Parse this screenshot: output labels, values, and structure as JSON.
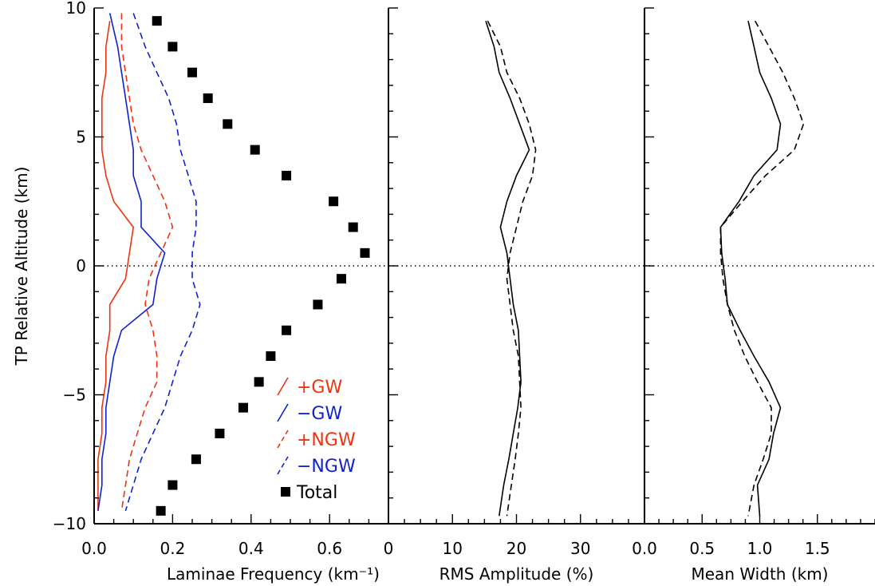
{
  "chart_data": {
    "type": "line",
    "y_axis": {
      "label": "TP Relative Altitude (km)",
      "range": [
        -10,
        10
      ],
      "ticks": [
        "10",
        "5",
        "0",
        "−5",
        "−10"
      ],
      "tick_values": [
        10,
        5,
        0,
        -5,
        -10
      ]
    },
    "reference_line": {
      "y": 0,
      "style": "dotted"
    },
    "panels": [
      {
        "id": "frequency",
        "xlabel": "Laminae Frequency (km⁻¹)",
        "xlim": [
          0,
          0.75
        ],
        "xticks": [
          "0.0",
          "0.2",
          "0.4",
          "0.6"
        ],
        "xtick_values": [
          0.0,
          0.2,
          0.4,
          0.6
        ],
        "series": [
          {
            "name": "+GW",
            "color": "#ee3311",
            "dash": "solid",
            "points": [
              [
                0.04,
                9.5
              ],
              [
                0.03,
                8.5
              ],
              [
                0.03,
                7.5
              ],
              [
                0.02,
                6.5
              ],
              [
                0.02,
                5.5
              ],
              [
                0.02,
                4.5
              ],
              [
                0.03,
                3.5
              ],
              [
                0.05,
                2.5
              ],
              [
                0.1,
                1.5
              ],
              [
                0.09,
                0.5
              ],
              [
                0.08,
                -0.5
              ],
              [
                0.04,
                -1.5
              ],
              [
                0.04,
                -2.5
              ],
              [
                0.03,
                -3.5
              ],
              [
                0.03,
                -4.5
              ],
              [
                0.02,
                -5.5
              ],
              [
                0.02,
                -6.5
              ],
              [
                0.01,
                -7.5
              ],
              [
                0.01,
                -8.5
              ],
              [
                0.01,
                -9.5
              ]
            ]
          },
          {
            "name": "−GW",
            "color": "#1122cc",
            "dash": "solid",
            "points": [
              [
                0.04,
                9.8
              ],
              [
                0.06,
                8.5
              ],
              [
                0.07,
                7.5
              ],
              [
                0.08,
                6.5
              ],
              [
                0.09,
                5.5
              ],
              [
                0.1,
                4.5
              ],
              [
                0.1,
                3.5
              ],
              [
                0.12,
                2.5
              ],
              [
                0.12,
                1.5
              ],
              [
                0.18,
                0.5
              ],
              [
                0.16,
                -0.5
              ],
              [
                0.15,
                -1.5
              ],
              [
                0.07,
                -2.5
              ],
              [
                0.05,
                -3.5
              ],
              [
                0.04,
                -4.5
              ],
              [
                0.03,
                -5.5
              ],
              [
                0.03,
                -6.5
              ],
              [
                0.02,
                -7.5
              ],
              [
                0.02,
                -8.5
              ],
              [
                0.01,
                -9.5
              ]
            ]
          },
          {
            "name": "+NGW",
            "color": "#ee3311",
            "dash": "dashed",
            "points": [
              [
                0.07,
                9.8
              ],
              [
                0.07,
                8.5
              ],
              [
                0.08,
                7.5
              ],
              [
                0.09,
                6.5
              ],
              [
                0.1,
                5.5
              ],
              [
                0.12,
                4.5
              ],
              [
                0.15,
                3.5
              ],
              [
                0.18,
                2.5
              ],
              [
                0.2,
                1.5
              ],
              [
                0.17,
                0.5
              ],
              [
                0.14,
                -0.5
              ],
              [
                0.13,
                -1.5
              ],
              [
                0.15,
                -2.5
              ],
              [
                0.16,
                -3.5
              ],
              [
                0.16,
                -4.5
              ],
              [
                0.13,
                -5.5
              ],
              [
                0.11,
                -6.5
              ],
              [
                0.09,
                -7.5
              ],
              [
                0.08,
                -8.5
              ],
              [
                0.07,
                -9.5
              ]
            ]
          },
          {
            "name": "−NGW",
            "color": "#1122cc",
            "dash": "dashed",
            "points": [
              [
                0.1,
                9.8
              ],
              [
                0.13,
                8.5
              ],
              [
                0.16,
                7.5
              ],
              [
                0.19,
                6.5
              ],
              [
                0.21,
                5.5
              ],
              [
                0.22,
                4.5
              ],
              [
                0.24,
                3.5
              ],
              [
                0.26,
                2.5
              ],
              [
                0.26,
                1.5
              ],
              [
                0.25,
                0.5
              ],
              [
                0.25,
                -0.5
              ],
              [
                0.27,
                -1.5
              ],
              [
                0.25,
                -2.5
              ],
              [
                0.22,
                -3.5
              ],
              [
                0.2,
                -4.5
              ],
              [
                0.18,
                -5.5
              ],
              [
                0.15,
                -6.5
              ],
              [
                0.12,
                -7.5
              ],
              [
                0.1,
                -8.5
              ],
              [
                0.08,
                -9.5
              ]
            ]
          },
          {
            "name": "Total",
            "color": "#000000",
            "marker": "square",
            "points": [
              [
                0.16,
                9.5
              ],
              [
                0.2,
                8.5
              ],
              [
                0.25,
                7.5
              ],
              [
                0.29,
                6.5
              ],
              [
                0.34,
                5.5
              ],
              [
                0.41,
                4.5
              ],
              [
                0.49,
                3.5
              ],
              [
                0.61,
                2.5
              ],
              [
                0.66,
                1.5
              ],
              [
                0.69,
                0.5
              ],
              [
                0.63,
                -0.5
              ],
              [
                0.57,
                -1.5
              ],
              [
                0.49,
                -2.5
              ],
              [
                0.45,
                -3.5
              ],
              [
                0.42,
                -4.5
              ],
              [
                0.38,
                -5.5
              ],
              [
                0.32,
                -6.5
              ],
              [
                0.26,
                -7.5
              ],
              [
                0.2,
                -8.5
              ],
              [
                0.17,
                -9.5
              ]
            ]
          }
        ],
        "legend": {
          "entries": [
            {
              "label": "+GW",
              "color": "#ee3311",
              "symbol": "solid"
            },
            {
              "label": "−GW",
              "color": "#1122cc",
              "symbol": "solid"
            },
            {
              "label": "+NGW",
              "color": "#ee3311",
              "symbol": "dashed"
            },
            {
              "label": "−NGW",
              "color": "#1122cc",
              "symbol": "dashed"
            },
            {
              "label": "Total",
              "color": "#000000",
              "symbol": "square"
            }
          ]
        }
      },
      {
        "id": "amplitude",
        "xlabel": "RMS Amplitude (%)",
        "xlim": [
          0,
          40
        ],
        "xticks": [
          "0",
          "10",
          "20",
          "30"
        ],
        "xtick_values": [
          0,
          10,
          20,
          30
        ],
        "series": [
          {
            "dash": "solid",
            "color": "#000000",
            "points": [
              [
                15.2,
                9.5
              ],
              [
                16.5,
                8.5
              ],
              [
                17.3,
                7.5
              ],
              [
                19,
                6.5
              ],
              [
                20.5,
                5.5
              ],
              [
                22,
                4.5
              ],
              [
                20,
                3.5
              ],
              [
                18.5,
                2.5
              ],
              [
                17.5,
                1.5
              ],
              [
                18.5,
                0.5
              ],
              [
                19,
                -0.5
              ],
              [
                19.5,
                -1.5
              ],
              [
                20.3,
                -2.5
              ],
              [
                20.5,
                -3.5
              ],
              [
                20.7,
                -4.5
              ],
              [
                20.2,
                -5.5
              ],
              [
                19.5,
                -6.5
              ],
              [
                18.8,
                -7.5
              ],
              [
                18,
                -8.5
              ],
              [
                17.3,
                -9.7
              ]
            ]
          },
          {
            "dash": "dashed",
            "color": "#000000",
            "points": [
              [
                15.5,
                9.5
              ],
              [
                17.5,
                8.5
              ],
              [
                18.5,
                7.5
              ],
              [
                20.5,
                6.5
              ],
              [
                22,
                5.5
              ],
              [
                23,
                4.5
              ],
              [
                22.5,
                3.5
              ],
              [
                21,
                2.5
              ],
              [
                20,
                1.5
              ],
              [
                19,
                0.5
              ],
              [
                18.5,
                -0.5
              ],
              [
                19,
                -1.5
              ],
              [
                19.5,
                -2.5
              ],
              [
                20.3,
                -3.5
              ],
              [
                20.5,
                -4.5
              ],
              [
                20.7,
                -5.5
              ],
              [
                20.3,
                -6.5
              ],
              [
                19.8,
                -7.5
              ],
              [
                19.2,
                -8.5
              ],
              [
                18.5,
                -9.7
              ]
            ]
          }
        ]
      },
      {
        "id": "width",
        "xlabel": "Mean Width (km)",
        "xlim": [
          0,
          2
        ],
        "xticks": [
          "0.0",
          "0.5",
          "1.0",
          "1.5"
        ],
        "xtick_values": [
          0,
          0.5,
          1.0,
          1.5
        ],
        "series": [
          {
            "dash": "solid",
            "color": "#000000",
            "points": [
              [
                0.9,
                9.5
              ],
              [
                0.95,
                8.5
              ],
              [
                1.0,
                7.5
              ],
              [
                1.1,
                6.5
              ],
              [
                1.18,
                5.5
              ],
              [
                1.15,
                4.5
              ],
              [
                0.95,
                3.5
              ],
              [
                0.82,
                2.5
              ],
              [
                0.66,
                1.5
              ],
              [
                0.67,
                0.5
              ],
              [
                0.7,
                -0.5
              ],
              [
                0.72,
                -1.5
              ],
              [
                0.83,
                -2.5
              ],
              [
                0.95,
                -3.5
              ],
              [
                1.08,
                -4.5
              ],
              [
                1.18,
                -5.5
              ],
              [
                1.12,
                -6.5
              ],
              [
                1.08,
                -7.5
              ],
              [
                0.98,
                -8.5
              ],
              [
                1.0,
                -9.7
              ]
            ]
          },
          {
            "dash": "dashed",
            "color": "#000000",
            "points": [
              [
                0.96,
                9.5
              ],
              [
                1.08,
                8.5
              ],
              [
                1.2,
                7.5
              ],
              [
                1.3,
                6.5
              ],
              [
                1.38,
                5.5
              ],
              [
                1.3,
                4.5
              ],
              [
                1.05,
                3.5
              ],
              [
                0.85,
                2.5
              ],
              [
                0.66,
                1.5
              ],
              [
                0.66,
                0.5
              ],
              [
                0.68,
                -0.5
              ],
              [
                0.72,
                -1.5
              ],
              [
                0.78,
                -2.5
              ],
              [
                0.87,
                -3.5
              ],
              [
                0.98,
                -4.5
              ],
              [
                1.1,
                -5.5
              ],
              [
                1.1,
                -6.5
              ],
              [
                1.03,
                -7.5
              ],
              [
                0.95,
                -8.5
              ],
              [
                0.9,
                -9.7
              ]
            ]
          }
        ]
      }
    ]
  }
}
